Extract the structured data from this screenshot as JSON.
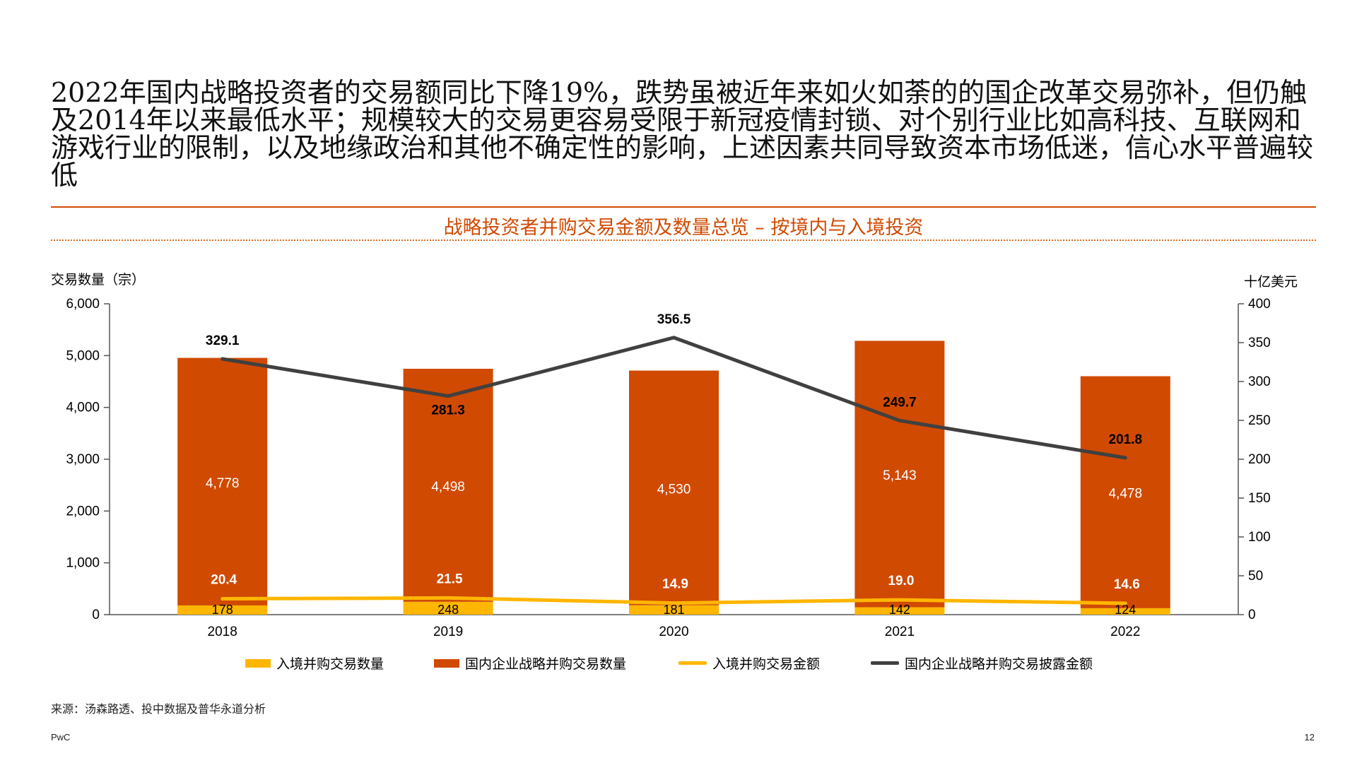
{
  "headline": "2022年国内战略投资者的交易额同比下降19%，跌势虽被近年来如火如荼的的国企改革交易弥补，但仍触及2014年以来最低水平；规模较大的交易更容易受限于新冠疫情封锁、对个别行业比如高科技、互联网和游戏行业的限制，以及地缘政治和其他不确定性的影响，上述因素共同导致资本市场低迷，信心水平普遍较低",
  "chart_title": "战略投资者并购交易金额及数量总览 – 按境内与入境投资",
  "source": "来源：汤森路透、投中数据及普华永道分析",
  "footer": {
    "brand": "PwC",
    "page": "12"
  },
  "colors": {
    "accent": "#d04a02",
    "inbound_count": "#ffb600",
    "domestic_count": "#d04a02",
    "inbound_value": "#ffb600",
    "domestic_value": "#404040"
  },
  "chart_data": {
    "type": "bar",
    "categories": [
      "2018",
      "2019",
      "2020",
      "2021",
      "2022"
    ],
    "y_left_label": "交易数量（宗）",
    "y_right_label": "十亿美元",
    "ylim_left": [
      0,
      6000
    ],
    "ylim_right": [
      0,
      400
    ],
    "yticks_left": [
      "0",
      "1,000",
      "2,000",
      "3,000",
      "4,000",
      "5,000",
      "6,000"
    ],
    "yticks_right": [
      "0",
      "50",
      "100",
      "150",
      "200",
      "250",
      "300",
      "350",
      "400"
    ],
    "bar_series": [
      {
        "name": "入境并购交易数量",
        "values": [
          178,
          248,
          181,
          142,
          124
        ],
        "labels": [
          "178",
          "248",
          "181",
          "142",
          "124"
        ],
        "stacked": true
      },
      {
        "name": "国内企业战略并购交易数量",
        "values": [
          4778,
          4498,
          4530,
          5143,
          4478
        ],
        "labels": [
          "4,778",
          "4,498",
          "4,530",
          "5,143",
          "4,478"
        ],
        "stacked": true
      }
    ],
    "line_series": [
      {
        "name": "入境并购交易金额",
        "axis": "right",
        "values": [
          20.4,
          21.5,
          14.9,
          19.0,
          14.6
        ],
        "labels": [
          "20.4",
          "21.5",
          "14.9",
          "19.0",
          "14.6"
        ]
      },
      {
        "name": "国内企业战略并购交易披露金额",
        "axis": "right",
        "values": [
          329.1,
          281.3,
          356.5,
          249.7,
          201.8
        ],
        "labels": [
          "329.1",
          "281.3",
          "356.5",
          "249.7",
          "201.8"
        ]
      }
    ],
    "grid": false,
    "legend_position": "bottom"
  }
}
